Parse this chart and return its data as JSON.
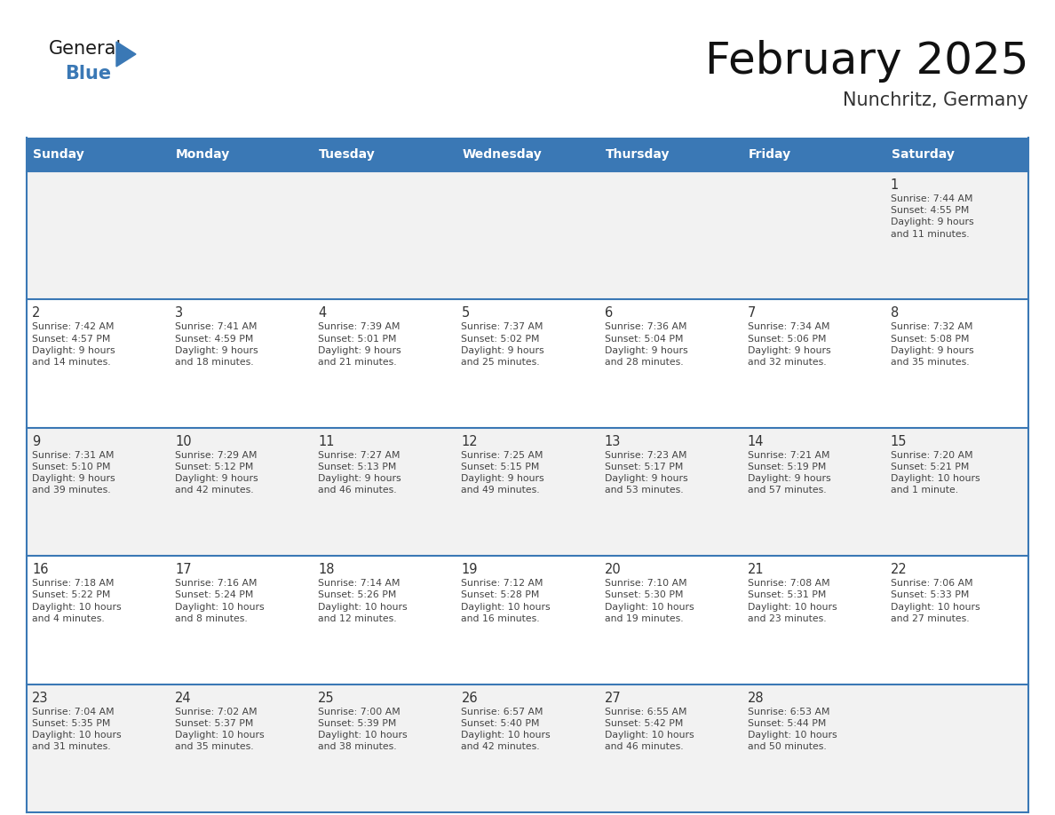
{
  "title": "February 2025",
  "subtitle": "Nunchritz, Germany",
  "header_bg": "#3A78B5",
  "header_text": "#FFFFFF",
  "day_names": [
    "Sunday",
    "Monday",
    "Tuesday",
    "Wednesday",
    "Thursday",
    "Friday",
    "Saturday"
  ],
  "row_bg_week1": "#F2F2F2",
  "row_bg_even": "#FFFFFF",
  "row_bg_odd": "#F2F2F2",
  "cell_border": "#3A78B5",
  "day_number_color": "#333333",
  "info_text_color": "#444444",
  "logo_general_color": "#1a1a1a",
  "logo_blue_color": "#3A78B5",
  "weeks": [
    [
      {
        "day": null,
        "info": ""
      },
      {
        "day": null,
        "info": ""
      },
      {
        "day": null,
        "info": ""
      },
      {
        "day": null,
        "info": ""
      },
      {
        "day": null,
        "info": ""
      },
      {
        "day": null,
        "info": ""
      },
      {
        "day": 1,
        "info": "Sunrise: 7:44 AM\nSunset: 4:55 PM\nDaylight: 9 hours\nand 11 minutes."
      }
    ],
    [
      {
        "day": 2,
        "info": "Sunrise: 7:42 AM\nSunset: 4:57 PM\nDaylight: 9 hours\nand 14 minutes."
      },
      {
        "day": 3,
        "info": "Sunrise: 7:41 AM\nSunset: 4:59 PM\nDaylight: 9 hours\nand 18 minutes."
      },
      {
        "day": 4,
        "info": "Sunrise: 7:39 AM\nSunset: 5:01 PM\nDaylight: 9 hours\nand 21 minutes."
      },
      {
        "day": 5,
        "info": "Sunrise: 7:37 AM\nSunset: 5:02 PM\nDaylight: 9 hours\nand 25 minutes."
      },
      {
        "day": 6,
        "info": "Sunrise: 7:36 AM\nSunset: 5:04 PM\nDaylight: 9 hours\nand 28 minutes."
      },
      {
        "day": 7,
        "info": "Sunrise: 7:34 AM\nSunset: 5:06 PM\nDaylight: 9 hours\nand 32 minutes."
      },
      {
        "day": 8,
        "info": "Sunrise: 7:32 AM\nSunset: 5:08 PM\nDaylight: 9 hours\nand 35 minutes."
      }
    ],
    [
      {
        "day": 9,
        "info": "Sunrise: 7:31 AM\nSunset: 5:10 PM\nDaylight: 9 hours\nand 39 minutes."
      },
      {
        "day": 10,
        "info": "Sunrise: 7:29 AM\nSunset: 5:12 PM\nDaylight: 9 hours\nand 42 minutes."
      },
      {
        "day": 11,
        "info": "Sunrise: 7:27 AM\nSunset: 5:13 PM\nDaylight: 9 hours\nand 46 minutes."
      },
      {
        "day": 12,
        "info": "Sunrise: 7:25 AM\nSunset: 5:15 PM\nDaylight: 9 hours\nand 49 minutes."
      },
      {
        "day": 13,
        "info": "Sunrise: 7:23 AM\nSunset: 5:17 PM\nDaylight: 9 hours\nand 53 minutes."
      },
      {
        "day": 14,
        "info": "Sunrise: 7:21 AM\nSunset: 5:19 PM\nDaylight: 9 hours\nand 57 minutes."
      },
      {
        "day": 15,
        "info": "Sunrise: 7:20 AM\nSunset: 5:21 PM\nDaylight: 10 hours\nand 1 minute."
      }
    ],
    [
      {
        "day": 16,
        "info": "Sunrise: 7:18 AM\nSunset: 5:22 PM\nDaylight: 10 hours\nand 4 minutes."
      },
      {
        "day": 17,
        "info": "Sunrise: 7:16 AM\nSunset: 5:24 PM\nDaylight: 10 hours\nand 8 minutes."
      },
      {
        "day": 18,
        "info": "Sunrise: 7:14 AM\nSunset: 5:26 PM\nDaylight: 10 hours\nand 12 minutes."
      },
      {
        "day": 19,
        "info": "Sunrise: 7:12 AM\nSunset: 5:28 PM\nDaylight: 10 hours\nand 16 minutes."
      },
      {
        "day": 20,
        "info": "Sunrise: 7:10 AM\nSunset: 5:30 PM\nDaylight: 10 hours\nand 19 minutes."
      },
      {
        "day": 21,
        "info": "Sunrise: 7:08 AM\nSunset: 5:31 PM\nDaylight: 10 hours\nand 23 minutes."
      },
      {
        "day": 22,
        "info": "Sunrise: 7:06 AM\nSunset: 5:33 PM\nDaylight: 10 hours\nand 27 minutes."
      }
    ],
    [
      {
        "day": 23,
        "info": "Sunrise: 7:04 AM\nSunset: 5:35 PM\nDaylight: 10 hours\nand 31 minutes."
      },
      {
        "day": 24,
        "info": "Sunrise: 7:02 AM\nSunset: 5:37 PM\nDaylight: 10 hours\nand 35 minutes."
      },
      {
        "day": 25,
        "info": "Sunrise: 7:00 AM\nSunset: 5:39 PM\nDaylight: 10 hours\nand 38 minutes."
      },
      {
        "day": 26,
        "info": "Sunrise: 6:57 AM\nSunset: 5:40 PM\nDaylight: 10 hours\nand 42 minutes."
      },
      {
        "day": 27,
        "info": "Sunrise: 6:55 AM\nSunset: 5:42 PM\nDaylight: 10 hours\nand 46 minutes."
      },
      {
        "day": 28,
        "info": "Sunrise: 6:53 AM\nSunset: 5:44 PM\nDaylight: 10 hours\nand 50 minutes."
      },
      {
        "day": null,
        "info": ""
      }
    ]
  ]
}
